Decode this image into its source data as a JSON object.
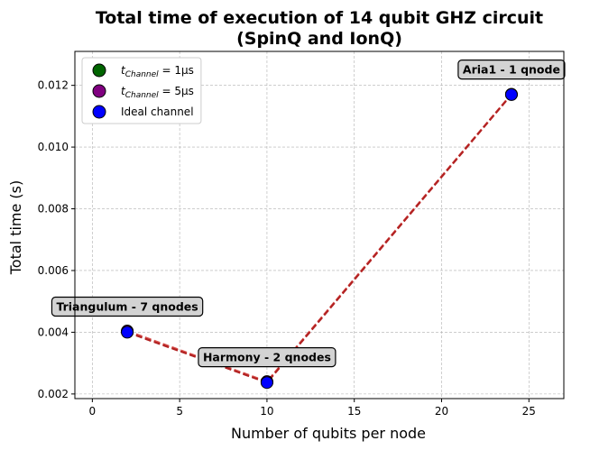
{
  "chart_data": {
    "type": "line",
    "title_line1": "Total time of execution of 14 qubit GHZ circuit",
    "title_line2": "(SpinQ and IonQ)",
    "xlabel": "Number of qubits per node",
    "ylabel": "Total time (s)",
    "xlim": [
      -1,
      27
    ],
    "ylim": [
      0.00185,
      0.0131
    ],
    "xticks": [
      0,
      5,
      10,
      15,
      20,
      25
    ],
    "xtick_labels": [
      "0",
      "5",
      "10",
      "15",
      "20",
      "25"
    ],
    "yticks": [
      0.002,
      0.004,
      0.006,
      0.008,
      0.01,
      0.012
    ],
    "ytick_labels": [
      "0.002",
      "0.004",
      "0.006",
      "0.008",
      "0.010",
      "0.012"
    ],
    "grid": true,
    "legend_position": "top-left",
    "series": [
      {
        "name": "t_Channel = 1μs",
        "legend_main": "t",
        "legend_sub": "Channel",
        "legend_rest": " = 1μs",
        "color": "#006400",
        "line_color": "#b22222",
        "x": [
          2,
          10,
          24
        ],
        "y": [
          0.00402,
          0.00238,
          0.01171
        ]
      },
      {
        "name": "t_Channel = 5μs",
        "legend_main": "t",
        "legend_sub": "Channel",
        "legend_rest": " = 5μs",
        "color": "#800080",
        "line_color": "#d9534f",
        "x": [
          2,
          10,
          24
        ],
        "y": [
          0.00404,
          0.0024,
          0.01171
        ]
      },
      {
        "name": "Ideal channel",
        "legend_main": "Ideal channel",
        "legend_sub": "",
        "legend_rest": "",
        "color": "#0000ff",
        "line_color": "#b22222",
        "x": [
          2,
          10,
          24
        ],
        "y": [
          0.004,
          0.00237,
          0.0117
        ]
      }
    ],
    "annotations": [
      {
        "text": "Triangulum - 7 qnodes",
        "x": 2,
        "y": 0.0047
      },
      {
        "text": "Harmony - 2 qnodes",
        "x": 10,
        "y": 0.00306
      },
      {
        "text": "Aria1 - 1 qnode",
        "x": 24,
        "y": 0.01238
      }
    ]
  }
}
